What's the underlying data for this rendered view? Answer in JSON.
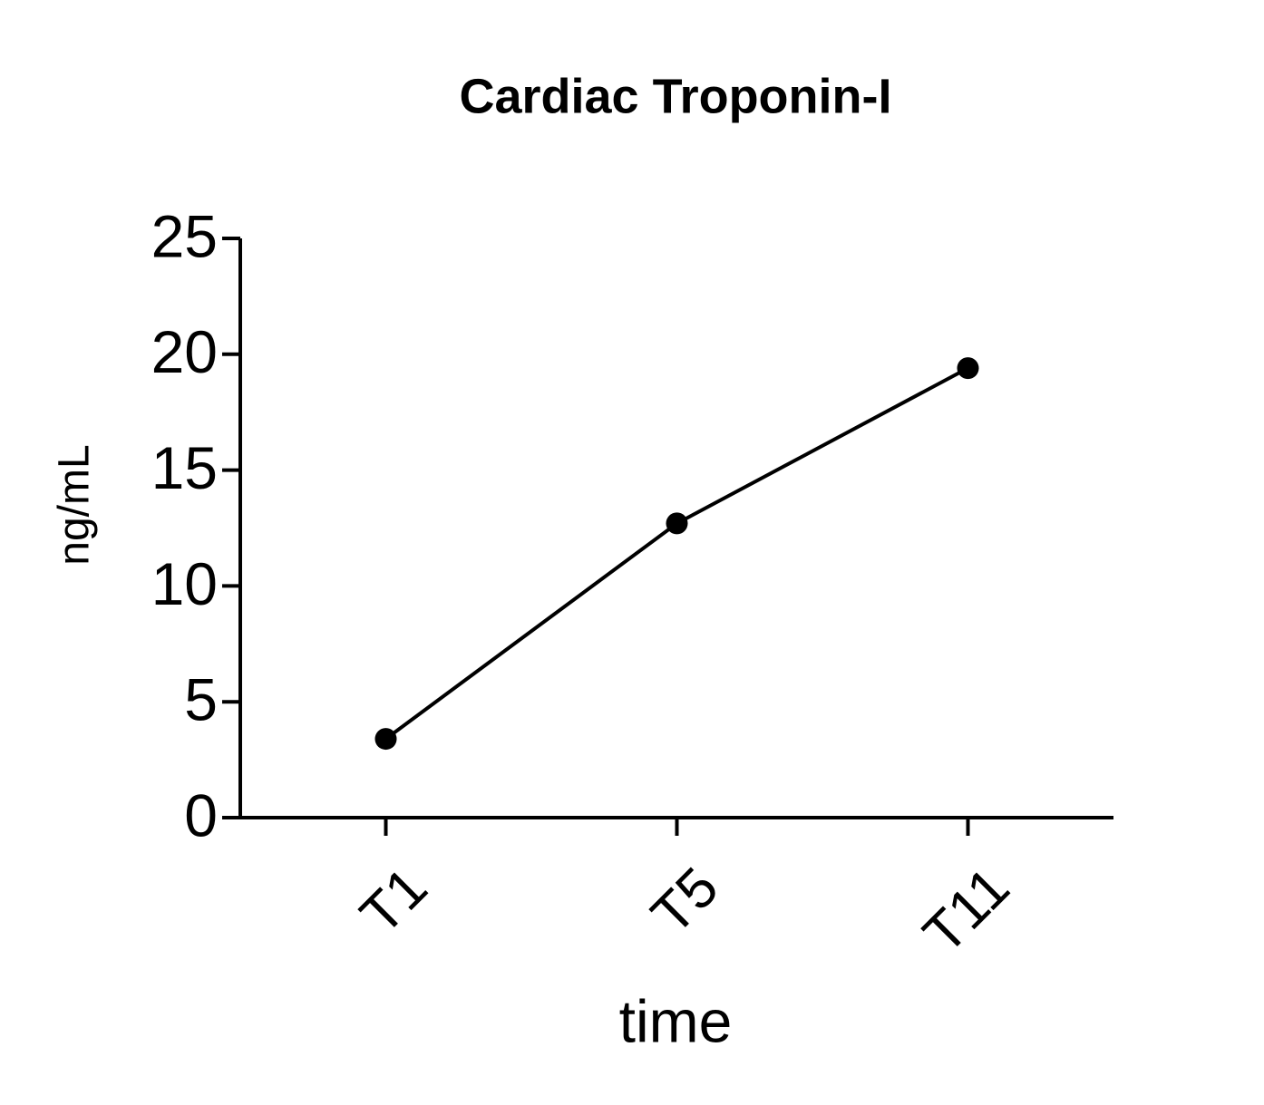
{
  "chart_data": {
    "type": "line",
    "title": "Cardiac Troponin-I",
    "x_label": "time",
    "y_label": "ng/mL",
    "categories": [
      "T1",
      "T5",
      "T11"
    ],
    "values": [
      3.4,
      12.7,
      19.4
    ],
    "color": "#000000",
    "ylim": [
      0,
      25
    ],
    "yticks": [
      0,
      5,
      10,
      15,
      20,
      25
    ]
  }
}
